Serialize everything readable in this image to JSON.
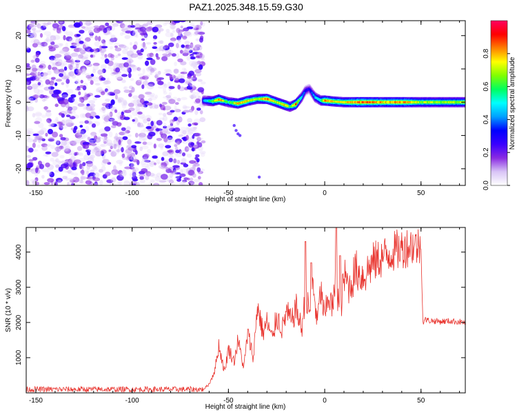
{
  "chart_data": [
    {
      "type": "heatmap",
      "title": "PAZ1.2025.348.15.59.G30",
      "xlabel": "Height of straight line (km)",
      "ylabel": "Frequency (Hz)",
      "xlim": [
        -155,
        73
      ],
      "ylim": [
        -25,
        24.5
      ],
      "xticks": [
        -150,
        -100,
        -50,
        0,
        50
      ],
      "xtick_labels": [
        "-150",
        "-100",
        "-50",
        "0",
        "50"
      ],
      "yticks": [
        20,
        10,
        0,
        -10,
        -20
      ],
      "ytick_labels": [
        "20",
        "10",
        "0",
        "-10",
        "-20"
      ],
      "colorbar": {
        "label": "Normalized spectral amplitude",
        "range": [
          0,
          1
        ],
        "ticks": [
          0,
          0.2,
          0.4,
          0.6,
          0.8
        ],
        "tick_labels": [
          "0.0",
          "0.2",
          "0.4",
          "0.6",
          "0.8"
        ],
        "colors": [
          "#ffffff",
          "#d8c4f6",
          "#8a2be2",
          "#3a00ff",
          "#0000ff",
          "#00a0ff",
          "#00ffff",
          "#00ff60",
          "#80ff00",
          "#ffff00",
          "#ff8000",
          "#ff0000",
          "#ff0060"
        ]
      },
      "noise_region_x": [
        -155,
        -63
      ],
      "noise_region_frequency": [
        -25,
        24.5
      ],
      "noise_amplitude_range": [
        0.0,
        0.15
      ],
      "signal_ridge": {
        "x": [
          -63,
          -58,
          -55,
          -50,
          -45,
          -40,
          -35,
          -30,
          -25,
          -20,
          -18,
          -15,
          -12,
          -10,
          -8,
          -5,
          -2,
          0,
          5,
          10,
          20,
          30,
          40,
          50,
          60,
          73
        ],
        "frequency": [
          0.5,
          0.3,
          0.8,
          0.0,
          -0.4,
          0.4,
          1.0,
          1.0,
          0.0,
          -1.0,
          -1.4,
          -0.6,
          1.5,
          3.5,
          4.0,
          1.5,
          0.5,
          0.5,
          0.2,
          0.0,
          0.0,
          0.0,
          0.0,
          0.0,
          0.0,
          0.0
        ],
        "amplitude": [
          0.45,
          0.7,
          0.9,
          0.6,
          0.85,
          0.8,
          0.7,
          0.9,
          0.75,
          0.85,
          0.6,
          0.9,
          0.5,
          0.35,
          0.3,
          0.5,
          0.6,
          0.9,
          0.8,
          0.8,
          0.95,
          0.85,
          0.9,
          0.75,
          0.75,
          0.75
        ]
      }
    },
    {
      "type": "line",
      "xlabel": "Height of straight line (km)",
      "ylabel": "SNR (10 * v/v)",
      "xlim": [
        -155,
        73
      ],
      "ylim": [
        0,
        4700
      ],
      "xticks": [
        -150,
        -100,
        -50,
        0,
        50
      ],
      "xtick_labels": [
        "-150",
        "-100",
        "-50",
        "0",
        "50"
      ],
      "yticks": [
        1000,
        2000,
        3000,
        4000
      ],
      "ytick_labels": [
        "1000",
        "2000",
        "3000",
        "4000"
      ],
      "color": "#e8302a",
      "baseline": {
        "x_range": [
          -155,
          -63
        ],
        "snr": 100
      },
      "x": [
        -63,
        -60,
        -57,
        -55,
        -52,
        -50,
        -47,
        -45,
        -42,
        -40,
        -37,
        -35,
        -32,
        -30,
        -27,
        -25,
        -22,
        -20,
        -17,
        -15,
        -12,
        -10,
        -8,
        -6,
        -4,
        -2,
        0,
        2,
        4,
        6,
        8,
        10,
        13,
        16,
        20,
        25,
        30,
        35,
        40,
        45,
        50,
        51,
        52,
        55,
        60,
        65,
        70,
        73
      ],
      "snr": [
        100,
        250,
        650,
        1350,
        600,
        1250,
        900,
        1500,
        700,
        1700,
        1000,
        2500,
        1700,
        2000,
        1500,
        2200,
        1800,
        2300,
        2000,
        2450,
        1800,
        2700,
        2300,
        3100,
        2000,
        2900,
        2100,
        2800,
        2400,
        3200,
        2200,
        3300,
        3000,
        3500,
        3300,
        3700,
        3850,
        4000,
        4100,
        4200,
        4150,
        2000,
        2080,
        2050,
        2030,
        2040,
        2020,
        2000
      ],
      "spikes": [
        {
          "x": -10,
          "snr": 4300
        },
        {
          "x": -7,
          "snr": 3700
        },
        {
          "x": 6,
          "snr": 4700
        },
        {
          "x": 8,
          "snr": 3900
        }
      ]
    }
  ]
}
